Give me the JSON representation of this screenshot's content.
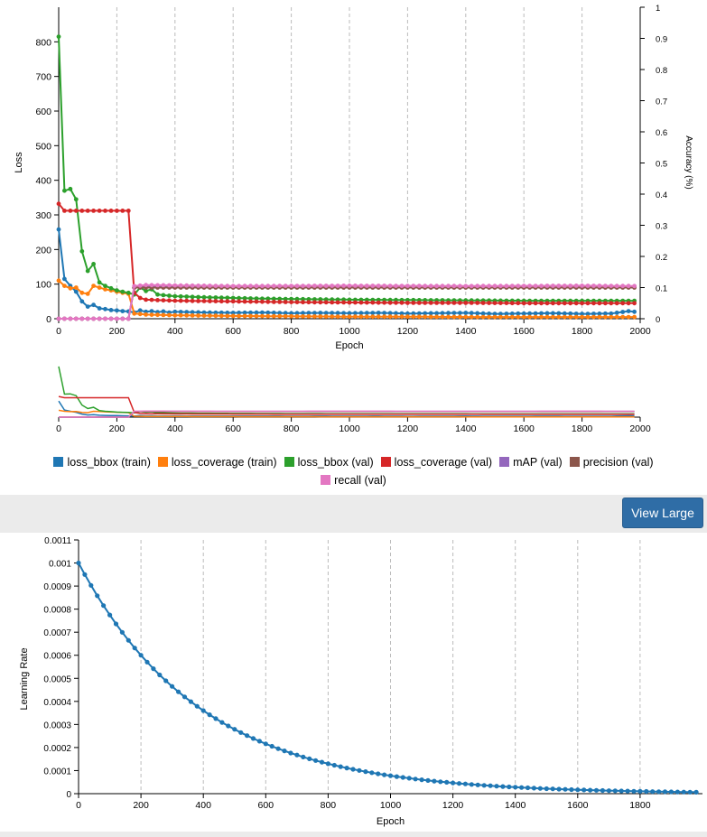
{
  "colors": {
    "loss_bbox_train": "#1f77b4",
    "loss_coverage_train": "#ff7f0e",
    "loss_bbox_val": "#2ca02c",
    "loss_coverage_val": "#d62728",
    "mAP_val": "#9467bd",
    "precision_val": "#8c564b",
    "recall_val": "#e377c2",
    "button": "#2f6da6"
  },
  "toolbar": {
    "view_large_label": "View Large"
  },
  "chart_data": [
    {
      "type": "line",
      "xlabel": "Epoch",
      "ylabel": "Loss",
      "y2label": "Accuracy (%)",
      "xlim": [
        0,
        2000
      ],
      "ylim": [
        0,
        900
      ],
      "y2lim": [
        0,
        1
      ],
      "x_ticks": [
        "0",
        "200",
        "400",
        "600",
        "800",
        "1000",
        "1200",
        "1400",
        "1600",
        "1800",
        "2000"
      ],
      "y_ticks": [
        "0",
        "100",
        "200",
        "300",
        "400",
        "500",
        "600",
        "700",
        "800"
      ],
      "y2_ticks": [
        "0",
        "0.1",
        "0.2",
        "0.3",
        "0.4",
        "0.5",
        "0.6",
        "0.7",
        "0.8",
        "0.9",
        "1"
      ],
      "grid": "vertical dashed",
      "legend_position": "bottom",
      "series": [
        {
          "name": "loss_bbox (train)",
          "axis": "left",
          "color": "#1f77b4",
          "points": [
            [
              0,
              258
            ],
            [
              20,
              115
            ],
            [
              40,
              95
            ],
            [
              60,
              78
            ],
            [
              80,
              50
            ],
            [
              100,
              35
            ],
            [
              120,
              40
            ],
            [
              140,
              30
            ],
            [
              160,
              28
            ],
            [
              180,
              25
            ],
            [
              200,
              24
            ],
            [
              220,
              22
            ],
            [
              240,
              21
            ],
            [
              260,
              18
            ],
            [
              280,
              24
            ],
            [
              300,
              20
            ],
            [
              320,
              22
            ],
            [
              340,
              19
            ],
            [
              360,
              21
            ],
            [
              380,
              18
            ],
            [
              400,
              20
            ],
            [
              500,
              18
            ],
            [
              600,
              17
            ],
            [
              700,
              18
            ],
            [
              800,
              16
            ],
            [
              900,
              17
            ],
            [
              1000,
              16
            ],
            [
              1100,
              17
            ],
            [
              1200,
              15
            ],
            [
              1300,
              16
            ],
            [
              1400,
              17
            ],
            [
              1500,
              14
            ],
            [
              1600,
              15
            ],
            [
              1700,
              16
            ],
            [
              1800,
              14
            ],
            [
              1900,
              15
            ],
            [
              1960,
              22
            ],
            [
              1980,
              20
            ]
          ]
        },
        {
          "name": "loss_coverage (train)",
          "axis": "left",
          "color": "#ff7f0e",
          "points": [
            [
              0,
              110
            ],
            [
              20,
              95
            ],
            [
              40,
              88
            ],
            [
              60,
              90
            ],
            [
              80,
              75
            ],
            [
              100,
              72
            ],
            [
              120,
              95
            ],
            [
              140,
              90
            ],
            [
              160,
              85
            ],
            [
              180,
              82
            ],
            [
              200,
              78
            ],
            [
              220,
              75
            ],
            [
              240,
              72
            ],
            [
              260,
              15
            ],
            [
              300,
              12
            ],
            [
              400,
              10
            ],
            [
              600,
              8
            ],
            [
              800,
              7
            ],
            [
              1000,
              6
            ],
            [
              1200,
              6
            ],
            [
              1400,
              5
            ],
            [
              1600,
              5
            ],
            [
              1800,
              5
            ],
            [
              1980,
              5
            ]
          ]
        },
        {
          "name": "loss_bbox (val)",
          "axis": "left",
          "color": "#2ca02c",
          "points": [
            [
              0,
              815
            ],
            [
              20,
              370
            ],
            [
              40,
              375
            ],
            [
              60,
              345
            ],
            [
              80,
              195
            ],
            [
              100,
              138
            ],
            [
              120,
              158
            ],
            [
              140,
              105
            ],
            [
              160,
              95
            ],
            [
              180,
              88
            ],
            [
              200,
              82
            ],
            [
              220,
              78
            ],
            [
              240,
              75
            ],
            [
              260,
              70
            ],
            [
              280,
              90
            ],
            [
              300,
              80
            ],
            [
              320,
              85
            ],
            [
              340,
              70
            ],
            [
              360,
              68
            ],
            [
              400,
              65
            ],
            [
              500,
              62
            ],
            [
              600,
              60
            ],
            [
              700,
              58
            ],
            [
              800,
              57
            ],
            [
              900,
              56
            ],
            [
              1000,
              55
            ],
            [
              1200,
              54
            ],
            [
              1400,
              53
            ],
            [
              1600,
              52
            ],
            [
              1800,
              52
            ],
            [
              1980,
              52
            ]
          ]
        },
        {
          "name": "loss_coverage (val)",
          "axis": "left",
          "color": "#d62728",
          "points": [
            [
              0,
              332
            ],
            [
              20,
              312
            ],
            [
              40,
              312
            ],
            [
              100,
              312
            ],
            [
              150,
              312
            ],
            [
              200,
              312
            ],
            [
              240,
              312
            ],
            [
              260,
              75
            ],
            [
              280,
              60
            ],
            [
              300,
              55
            ],
            [
              400,
              52
            ],
            [
              600,
              50
            ],
            [
              800,
              48
            ],
            [
              1000,
              47
            ],
            [
              1200,
              46
            ],
            [
              1400,
              46
            ],
            [
              1600,
              45
            ],
            [
              1800,
              45
            ],
            [
              1980,
              45
            ]
          ]
        },
        {
          "name": "mAP (val)",
          "axis": "right",
          "color": "#9467bd",
          "points": [
            [
              0,
              0
            ],
            [
              240,
              0
            ],
            [
              260,
              0.1
            ],
            [
              300,
              0.105
            ],
            [
              600,
              0.103
            ],
            [
              1000,
              0.104
            ],
            [
              1400,
              0.103
            ],
            [
              1800,
              0.104
            ],
            [
              1980,
              0.104
            ]
          ]
        },
        {
          "name": "precision (val)",
          "axis": "right",
          "color": "#8c564b",
          "points": [
            [
              0,
              0
            ],
            [
              240,
              0
            ],
            [
              260,
              0.1
            ],
            [
              400,
              0.1
            ],
            [
              1000,
              0.1
            ],
            [
              1980,
              0.1
            ]
          ]
        },
        {
          "name": "recall (val)",
          "axis": "right",
          "color": "#e377c2",
          "points": [
            [
              0,
              0
            ],
            [
              240,
              0
            ],
            [
              260,
              0.105
            ],
            [
              300,
              0.108
            ],
            [
              600,
              0.105
            ],
            [
              1000,
              0.106
            ],
            [
              1400,
              0.105
            ],
            [
              1800,
              0.106
            ],
            [
              1980,
              0.105
            ]
          ]
        }
      ]
    },
    {
      "type": "line",
      "xlabel": "Epoch",
      "ylabel": "Learning Rate",
      "xlim": [
        0,
        2000
      ],
      "ylim": [
        0,
        0.0011
      ],
      "x_ticks": [
        "0",
        "200",
        "400",
        "600",
        "800",
        "1000",
        "1200",
        "1400",
        "1600",
        "1800"
      ],
      "y_ticks": [
        "0",
        "0.0001",
        "0.0002",
        "0.0003",
        "0.0004",
        "0.0005",
        "0.0006",
        "0.0007",
        "0.0008",
        "0.0009",
        "0.001",
        "0.0011"
      ],
      "grid": "vertical dashed",
      "series": [
        {
          "name": "",
          "color": "#1f77b4",
          "function": "exponential_decay",
          "initial": 0.001,
          "decay_per_epoch": 0.99745,
          "x_start": 0,
          "x_end": 1980,
          "step": 20
        }
      ]
    }
  ]
}
